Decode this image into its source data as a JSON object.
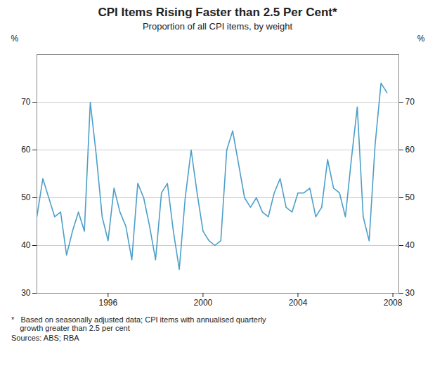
{
  "chart_data": {
    "type": "line",
    "title": "CPI Items Rising Faster than 2.5 Per Cent*",
    "subtitle": "Proportion of all CPI items, by weight",
    "ylabel": "%",
    "y2label": "%",
    "footnotes": [
      "*   Based on seasonally adjusted data; CPI items with annualised quarterly\n    growth greater than 2.5 per cent",
      "Sources: ABS; RBA"
    ],
    "color": "#4c9fc8",
    "grid": true,
    "xlim": [
      1993,
      2008.25
    ],
    "xticks": [
      1996,
      2000,
      2004,
      2008
    ],
    "ylim": [
      30,
      80
    ],
    "yticks": [
      30,
      40,
      50,
      60,
      70
    ],
    "y2lim": [
      30,
      80
    ],
    "y2ticks": [
      30,
      40,
      50,
      60,
      70
    ],
    "x": [
      1993,
      1993.25,
      1993.5,
      1993.75,
      1994,
      1994.25,
      1994.5,
      1994.75,
      1995,
      1995.25,
      1995.5,
      1995.75,
      1996,
      1996.25,
      1996.5,
      1996.75,
      1997,
      1997.25,
      1997.5,
      1997.75,
      1998,
      1998.25,
      1998.5,
      1998.75,
      1999,
      1999.25,
      1999.5,
      1999.75,
      2000,
      2000.25,
      2000.5,
      2000.75,
      2001,
      2001.25,
      2001.5,
      2001.75,
      2002,
      2002.25,
      2002.5,
      2002.75,
      2003,
      2003.25,
      2003.5,
      2003.75,
      2004,
      2004.25,
      2004.5,
      2004.75,
      2005,
      2005.25,
      2005.5,
      2005.75,
      2006,
      2006.25,
      2006.5,
      2006.75,
      2007,
      2007.25,
      2007.5,
      2007.75
    ],
    "values": [
      46,
      54,
      50,
      46,
      47,
      38,
      43,
      47,
      43,
      70,
      59,
      46,
      41,
      52,
      47,
      44,
      37,
      53,
      50,
      44,
      37,
      51,
      53,
      43,
      35,
      50,
      60,
      51,
      43,
      41,
      40,
      41,
      60,
      64,
      57,
      50,
      48,
      50,
      47,
      46,
      51,
      54,
      48,
      47,
      51,
      51,
      52,
      46,
      48,
      58,
      52,
      51,
      46,
      58,
      69,
      46,
      41,
      61,
      74,
      72
    ]
  }
}
